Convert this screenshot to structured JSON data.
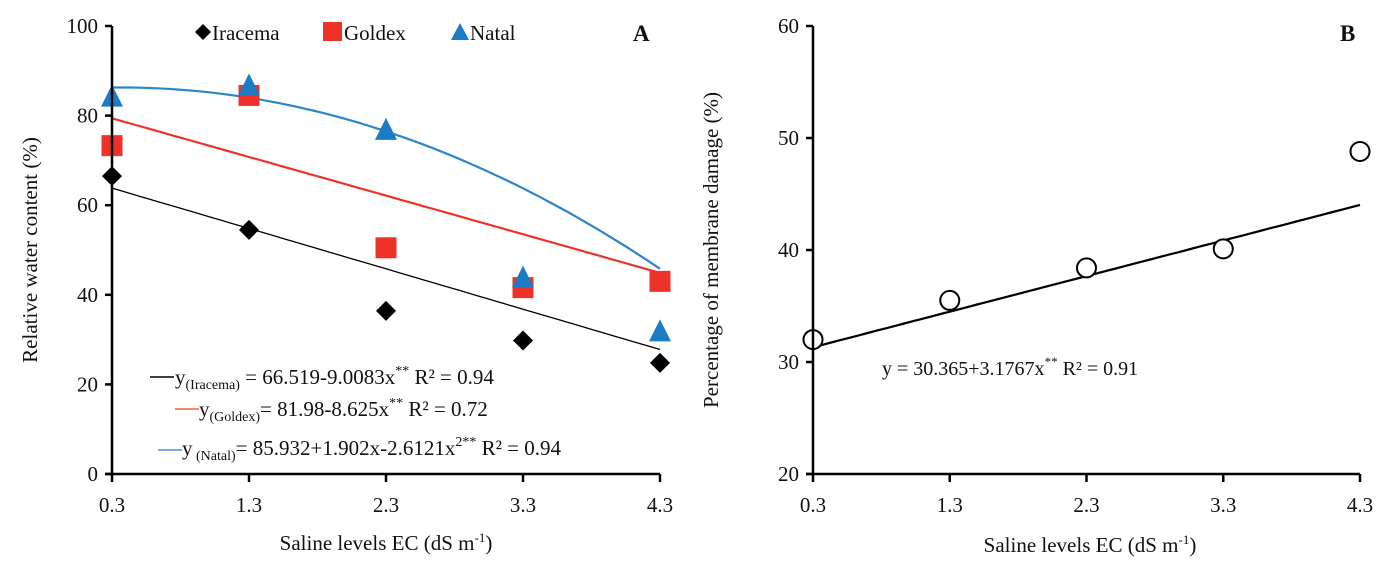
{
  "chart_data": [
    {
      "panel": "A",
      "type": "scatter",
      "title": "",
      "panel_label": "A",
      "xlabel": "Saline levels EC (dS m",
      "xlabel_sup": "-1",
      "xlabel_close": ")",
      "ylabel": "Relative water content (%)",
      "x": [
        0.3,
        1.3,
        2.3,
        3.3,
        4.3
      ],
      "x_tick_labels": [
        "0.3",
        "1.3",
        "2.3",
        "3.3",
        "4.3"
      ],
      "xlim": [
        0.3,
        4.3
      ],
      "ylim": [
        0,
        100
      ],
      "y_ticks": [
        0,
        20,
        40,
        60,
        80,
        100
      ],
      "y_tick_labels": [
        "0",
        "20",
        "40",
        "60",
        "80",
        "100"
      ],
      "grid": false,
      "legend_position": "top",
      "series": [
        {
          "name": "Iracema",
          "marker": "diamond",
          "color": "#000000",
          "values": [
            66.5,
            54.5,
            36.4,
            29.8,
            24.8
          ],
          "fit": {
            "type": "linear",
            "coef": [
              66.519,
              -9.0083
            ],
            "line_color": "#000000"
          },
          "equation": {
            "prefix": "y",
            "sub": "(Iracema)",
            "body": " = 66.519-9.0083x",
            "sup": "**",
            "r2_label": "  R² = 0.94"
          }
        },
        {
          "name": "Goldex",
          "marker": "square",
          "color": "#EE3229",
          "values": [
            73.3,
            84.5,
            50.5,
            41.6,
            43.0
          ],
          "fit": {
            "type": "linear",
            "coef": [
              81.98,
              -8.625
            ],
            "line_color": "#EE3229"
          },
          "equation": {
            "prefix": "y",
            "sub": "(Goldex)",
            "body": "= 81.98-8.625x",
            "sup": "**",
            "r2_label": "  R² = 0.72"
          }
        },
        {
          "name": "Natal",
          "marker": "triangle",
          "color": "#1B7BC4",
          "values": [
            84.0,
            86.5,
            76.6,
            43.6,
            31.6
          ],
          "fit": {
            "type": "quadratic",
            "coef": [
              85.932,
              1.902,
              -2.6121
            ],
            "line_color": "#2E86C8"
          },
          "equation": {
            "prefix": "y",
            "sub": " (Natal)",
            "body": "= 85.932+1.902x-2.6121x",
            "sup": "2**",
            "r2_label": "  R² = 0.94"
          }
        }
      ]
    },
    {
      "panel": "B",
      "type": "scatter",
      "title": "",
      "panel_label": "B",
      "xlabel": "Saline levels EC (dS m",
      "xlabel_sup": "-1",
      "xlabel_close": ")",
      "ylabel": "Percentage of membrane damage (%)",
      "x": [
        0.3,
        1.3,
        2.3,
        3.3,
        4.3
      ],
      "x_tick_labels": [
        "0.3",
        "1.3",
        "2.3",
        "3.3",
        "4.3"
      ],
      "xlim": [
        0.3,
        4.3
      ],
      "ylim": [
        20,
        60
      ],
      "y_ticks": [
        20,
        30,
        40,
        50,
        60
      ],
      "y_tick_labels": [
        "20",
        "30",
        "40",
        "50",
        "60"
      ],
      "grid": false,
      "series": [
        {
          "name": "Membrane damage",
          "marker": "open-circle",
          "color": "#000000",
          "values": [
            32.0,
            35.5,
            38.4,
            40.1,
            48.8
          ],
          "fit": {
            "type": "linear",
            "coef": [
              30.365,
              3.1767
            ],
            "line_color": "#000000"
          },
          "equation": {
            "prefix": "y = ",
            "body": " 30.365+3.1767x",
            "sup": "**",
            "r2_label": " R² = 0.91"
          }
        }
      ]
    }
  ]
}
